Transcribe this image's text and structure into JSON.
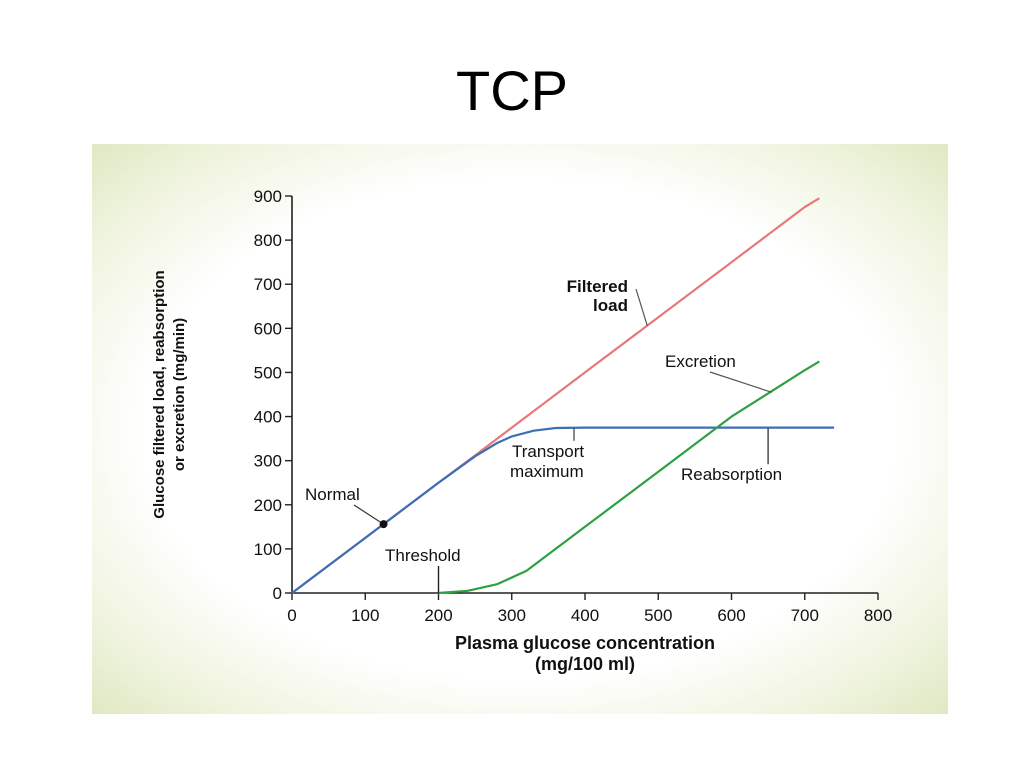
{
  "slide": {
    "title": "TCP"
  },
  "chart_data": {
    "type": "line",
    "xlabel": [
      "Plasma glucose concentration",
      "(mg/100 ml)"
    ],
    "ylabel": [
      "Glucose filtered load, reabsorption",
      "or excretion (mg/min)"
    ],
    "xlim": [
      0,
      800
    ],
    "ylim": [
      0,
      900
    ],
    "xticks": [
      0,
      100,
      200,
      300,
      400,
      500,
      600,
      700,
      800
    ],
    "yticks": [
      0,
      100,
      200,
      300,
      400,
      500,
      600,
      700,
      800,
      900
    ],
    "grid": false,
    "series": [
      {
        "name": "Filtered load",
        "color": "#e8787a",
        "x": [
          0,
          100,
          200,
          250,
          300,
          400,
          500,
          600,
          700,
          720
        ],
        "y": [
          0,
          125,
          250,
          312,
          375,
          500,
          625,
          750,
          875,
          895
        ]
      },
      {
        "name": "Reabsorption",
        "color": "#3d6fb5",
        "x": [
          0,
          100,
          200,
          250,
          280,
          300,
          330,
          360,
          400,
          500,
          600,
          700,
          740
        ],
        "y": [
          0,
          125,
          250,
          310,
          340,
          355,
          368,
          374,
          375,
          375,
          375,
          375,
          375
        ]
      },
      {
        "name": "Excretion",
        "color": "#2ea043",
        "x": [
          200,
          240,
          280,
          320,
          340,
          400,
          500,
          600,
          700,
          720
        ],
        "y": [
          0,
          5,
          20,
          50,
          75,
          150,
          275,
          400,
          505,
          525
        ]
      }
    ],
    "annotations": [
      {
        "text": [
          "Filtered",
          "load"
        ],
        "color": "#e8787a"
      },
      {
        "text": [
          "Excretion"
        ],
        "color": "#2ea043"
      },
      {
        "text": [
          "Transport",
          "maximum"
        ],
        "color": "#3d6fb5"
      },
      {
        "text": [
          "Reabsorption"
        ],
        "color": "#3d6fb5"
      },
      {
        "text": [
          "Normal"
        ],
        "color": "#111111",
        "point": [
          125,
          156
        ]
      },
      {
        "text": [
          "Threshold"
        ],
        "color": "#111111",
        "point": [
          200,
          0
        ]
      }
    ]
  }
}
